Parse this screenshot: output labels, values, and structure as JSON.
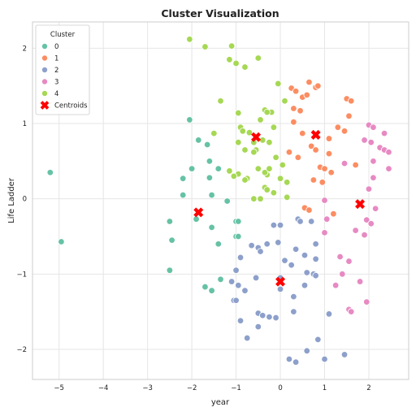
{
  "chart_data": {
    "type": "scatter",
    "title": "Cluster Visualization",
    "xlabel": "year",
    "ylabel": "Life Ladder",
    "xlim": [
      -5.6,
      2.9
    ],
    "ylim": [
      -2.4,
      2.35
    ],
    "xticks": [
      -5,
      -4,
      -3,
      -2,
      -1,
      0,
      1,
      2
    ],
    "yticks": [
      -2,
      -1,
      0,
      1,
      2
    ],
    "grid": true,
    "legend": {
      "title": "Cluster",
      "placement": "top-left",
      "entries": [
        "0",
        "1",
        "2",
        "3",
        "4"
      ],
      "centroid_label": "Centroids"
    },
    "series": [
      {
        "name": "0",
        "color": "#66c2a5",
        "points": [
          [
            -5.2,
            0.35
          ],
          [
            -4.95,
            -0.57
          ],
          [
            -2.5,
            -0.3
          ],
          [
            -2.5,
            -0.95
          ],
          [
            -2.45,
            -0.55
          ],
          [
            -2.2,
            0.27
          ],
          [
            -2.2,
            0.05
          ],
          [
            -2.05,
            1.05
          ],
          [
            -2.0,
            0.4
          ],
          [
            -1.9,
            -0.27
          ],
          [
            -1.85,
            0.78
          ],
          [
            -1.7,
            -1.17
          ],
          [
            -1.65,
            0.72
          ],
          [
            -1.6,
            0.5
          ],
          [
            -1.6,
            0.28
          ],
          [
            -1.55,
            0.05
          ],
          [
            -1.55,
            -0.38
          ],
          [
            -1.55,
            -1.22
          ],
          [
            -1.4,
            0.4
          ],
          [
            -1.4,
            -0.6
          ],
          [
            -1.35,
            -1.07
          ],
          [
            -1.2,
            -0.03
          ],
          [
            -1.0,
            -0.3
          ],
          [
            -1.0,
            -0.5
          ],
          [
            -0.95,
            -0.3
          ],
          [
            -0.95,
            -0.5
          ]
        ]
      },
      {
        "name": "1",
        "color": "#fc8d62",
        "points": [
          [
            0.2,
            0.62
          ],
          [
            0.25,
            1.47
          ],
          [
            0.3,
            1.2
          ],
          [
            0.3,
            1.02
          ],
          [
            0.35,
            1.43
          ],
          [
            0.4,
            0.55
          ],
          [
            0.45,
            1.17
          ],
          [
            0.5,
            1.35
          ],
          [
            0.5,
            0.87
          ],
          [
            0.55,
            -0.12
          ],
          [
            0.6,
            1.38
          ],
          [
            0.65,
            1.55
          ],
          [
            0.65,
            -0.15
          ],
          [
            0.7,
            0.7
          ],
          [
            0.75,
            0.25
          ],
          [
            0.8,
            1.48
          ],
          [
            0.8,
            0.65
          ],
          [
            0.85,
            1.5
          ],
          [
            0.9,
            0.42
          ],
          [
            0.95,
            0.22
          ],
          [
            1.0,
            0.4
          ],
          [
            1.1,
            0.6
          ],
          [
            1.1,
            0.8
          ],
          [
            1.15,
            0.35
          ],
          [
            1.2,
            -0.2
          ],
          [
            1.3,
            0.95
          ],
          [
            1.45,
            0.9
          ],
          [
            1.5,
            1.33
          ],
          [
            1.55,
            1.1
          ],
          [
            1.6,
            1.3
          ],
          [
            1.7,
            0.45
          ]
        ]
      },
      {
        "name": "2",
        "color": "#8da0cb",
        "points": [
          [
            -1.1,
            -1.1
          ],
          [
            -1.05,
            -1.35
          ],
          [
            -1.0,
            -0.95
          ],
          [
            -1.0,
            -1.35
          ],
          [
            -0.95,
            -1.15
          ],
          [
            -0.9,
            -0.78
          ],
          [
            -0.9,
            -1.62
          ],
          [
            -0.8,
            -1.22
          ],
          [
            -0.75,
            -1.85
          ],
          [
            -0.65,
            -0.62
          ],
          [
            -0.55,
            -1.05
          ],
          [
            -0.5,
            -0.65
          ],
          [
            -0.5,
            -1.52
          ],
          [
            -0.5,
            -1.7
          ],
          [
            -0.45,
            -0.7
          ],
          [
            -0.4,
            -1.55
          ],
          [
            -0.3,
            -0.6
          ],
          [
            -0.25,
            -1.57
          ],
          [
            -0.15,
            -0.35
          ],
          [
            -0.1,
            -1.58
          ],
          [
            -0.05,
            -0.58
          ],
          [
            0.0,
            -0.35
          ],
          [
            0.0,
            -1.05
          ],
          [
            0.0,
            -1.2
          ],
          [
            0.1,
            -0.82
          ],
          [
            0.2,
            -2.13
          ],
          [
            0.25,
            -0.88
          ],
          [
            0.3,
            -1.3
          ],
          [
            0.3,
            -1.5
          ],
          [
            0.35,
            -0.67
          ],
          [
            0.35,
            -2.17
          ],
          [
            0.4,
            -0.27
          ],
          [
            0.45,
            -0.3
          ],
          [
            0.55,
            -0.75
          ],
          [
            0.55,
            -1.15
          ],
          [
            0.6,
            -2.02
          ],
          [
            0.6,
            -0.98
          ],
          [
            0.7,
            -0.3
          ],
          [
            0.75,
            -1.0
          ],
          [
            0.8,
            -0.6
          ],
          [
            0.8,
            -0.8
          ],
          [
            0.8,
            -1.02
          ],
          [
            0.85,
            -1.87
          ],
          [
            1.0,
            -2.13
          ],
          [
            1.1,
            -1.53
          ],
          [
            1.45,
            -2.07
          ]
        ]
      },
      {
        "name": "3",
        "color": "#e78ac3",
        "points": [
          [
            1.0,
            -0.02
          ],
          [
            1.0,
            -0.45
          ],
          [
            1.05,
            -0.27
          ],
          [
            1.25,
            -1.15
          ],
          [
            1.35,
            -0.77
          ],
          [
            1.4,
            -1.0
          ],
          [
            1.45,
            0.47
          ],
          [
            1.55,
            -0.83
          ],
          [
            1.55,
            -1.47
          ],
          [
            1.6,
            -1.5
          ],
          [
            1.7,
            -0.42
          ],
          [
            1.8,
            -1.1
          ],
          [
            1.9,
            0.78
          ],
          [
            1.9,
            -0.48
          ],
          [
            1.95,
            -0.28
          ],
          [
            1.95,
            -1.37
          ],
          [
            2.0,
            0.98
          ],
          [
            2.0,
            0.13
          ],
          [
            2.05,
            0.75
          ],
          [
            2.05,
            -0.33
          ],
          [
            2.1,
            0.95
          ],
          [
            2.1,
            0.5
          ],
          [
            2.1,
            0.28
          ],
          [
            2.15,
            -0.13
          ],
          [
            2.25,
            0.68
          ],
          [
            2.35,
            0.87
          ],
          [
            2.35,
            0.65
          ],
          [
            2.45,
            0.4
          ],
          [
            2.45,
            0.62
          ]
        ]
      },
      {
        "name": "4",
        "color": "#a6d854",
        "points": [
          [
            -2.05,
            2.12
          ],
          [
            -1.7,
            2.02
          ],
          [
            -1.5,
            0.87
          ],
          [
            -1.35,
            1.3
          ],
          [
            -1.15,
            1.85
          ],
          [
            -1.15,
            0.37
          ],
          [
            -1.1,
            2.03
          ],
          [
            -1.0,
            1.8
          ],
          [
            -0.95,
            1.14
          ],
          [
            -0.95,
            0.75
          ],
          [
            -0.95,
            0.33
          ],
          [
            -0.9,
            0.95
          ],
          [
            -0.85,
            0.9
          ],
          [
            -0.8,
            1.75
          ],
          [
            -0.8,
            0.65
          ],
          [
            -0.75,
            0.27
          ],
          [
            -0.7,
            0.88
          ],
          [
            -0.6,
            0.75
          ],
          [
            -0.6,
            0.0
          ],
          [
            -0.55,
            0.65
          ],
          [
            -0.5,
            1.87
          ],
          [
            -0.5,
            0.4
          ],
          [
            -0.45,
            0.0
          ],
          [
            -0.4,
            0.78
          ],
          [
            -0.35,
            1.18
          ],
          [
            -0.3,
            0.32
          ],
          [
            -0.25,
            0.75
          ],
          [
            -0.2,
            1.15
          ],
          [
            -0.15,
            0.95
          ],
          [
            -0.15,
            0.08
          ],
          [
            -0.1,
            0.55
          ],
          [
            -0.05,
            1.53
          ],
          [
            0.0,
            0.27
          ],
          [
            0.05,
            0.45
          ],
          [
            0.1,
            1.3
          ],
          [
            0.15,
            0.22
          ],
          [
            0.15,
            0.02
          ],
          [
            -0.35,
            0.35
          ],
          [
            -0.35,
            0.15
          ],
          [
            -0.3,
            0.12
          ],
          [
            -1.05,
            0.3
          ],
          [
            -0.25,
            0.4
          ],
          [
            -0.6,
            0.62
          ],
          [
            -0.8,
            0.25
          ],
          [
            -0.45,
            1.05
          ],
          [
            -0.3,
            1.15
          ]
        ]
      }
    ],
    "centroids": {
      "name": "Centroids",
      "color": "#ff0000",
      "marker": "X",
      "points": [
        [
          -1.85,
          -0.18
        ],
        [
          -0.55,
          0.82
        ],
        [
          0.0,
          -1.1
        ],
        [
          0.8,
          0.85
        ],
        [
          1.8,
          -0.07
        ]
      ]
    }
  }
}
